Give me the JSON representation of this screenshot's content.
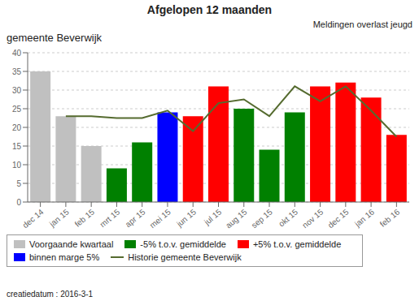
{
  "chart_data": {
    "type": "bar",
    "title": "Afgelopen 12 maanden",
    "subtitle": "Meldingen overlast jeugd",
    "annotations": [
      "gemeente Beverwijk",
      "creatiedatum : 2016-3-1"
    ],
    "categories": [
      "dec 14",
      "jan 15",
      "feb 15",
      "mrt 15",
      "apr 15",
      "mei 15",
      "jun 15",
      "jul 15",
      "aug 15",
      "sep 15",
      "okt 15",
      "nov 15",
      "dec 15",
      "jan 16",
      "feb 16"
    ],
    "series": [
      {
        "type": "bar",
        "values": [
          35,
          23,
          15,
          9,
          16,
          24,
          23,
          31,
          25,
          14,
          24,
          31,
          32,
          28,
          18
        ],
        "colors": [
          "#c0c0c0",
          "#c0c0c0",
          "#c0c0c0",
          "#008000",
          "#008000",
          "#0000ff",
          "#ff0000",
          "#ff0000",
          "#008000",
          "#008000",
          "#008000",
          "#ff0000",
          "#ff0000",
          "#ff0000",
          "#ff0000"
        ]
      },
      {
        "type": "line",
        "name": "Historie  gemeente Beverwijk",
        "color": "#556b2f",
        "values": [
          null,
          23,
          23,
          22.5,
          22.5,
          24.5,
          19,
          26.5,
          27.5,
          23,
          31,
          27,
          31,
          24.5,
          17.5
        ]
      }
    ],
    "color_legend": [
      {
        "name": "Voorgaande kwartaal",
        "color": "#c0c0c0"
      },
      {
        "name": "-5% t.o.v. gemiddelde",
        "color": "#008000"
      },
      {
        "name": "+5% t.o.v. gemiddelde",
        "color": "#ff0000"
      },
      {
        "name": "binnen marge 5%",
        "color": "#0000ff"
      }
    ],
    "ylim": [
      0,
      40
    ],
    "yticks": [
      0,
      5,
      10,
      15,
      20,
      25,
      30,
      35,
      40
    ],
    "grid": true,
    "legend": "bottom"
  }
}
